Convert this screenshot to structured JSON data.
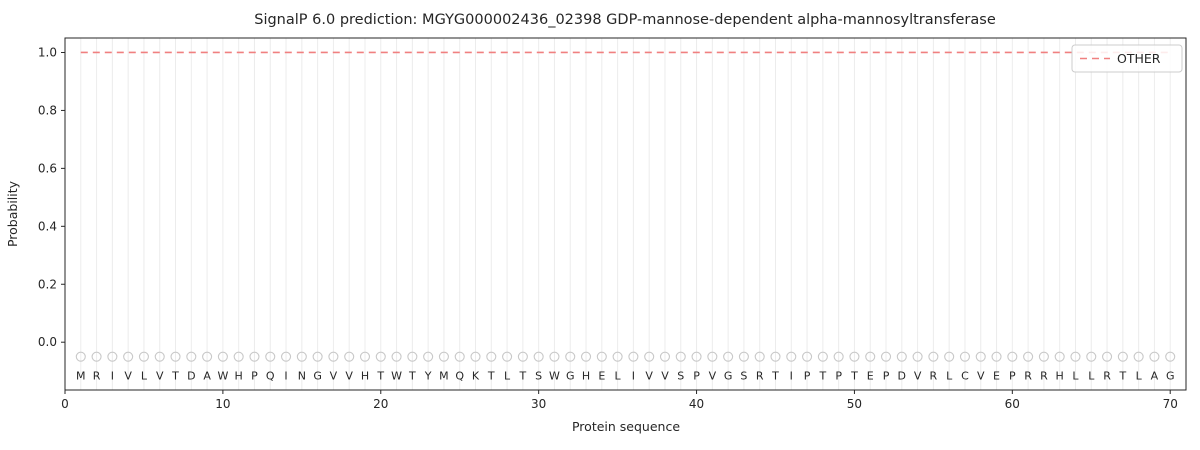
{
  "colors": {
    "other_line": "#f08080",
    "marker": "#c9c9c9",
    "grid": "#ececec",
    "axis": "#262626",
    "text": "#262626",
    "legend_border": "#cccccc",
    "legend_bg": "#ffffff"
  },
  "chart_data": {
    "type": "line",
    "title": "SignalP 6.0 prediction: MGYG000002436_02398 GDP-mannose-dependent alpha-mannosyltransferase",
    "xlabel": "Protein sequence",
    "ylabel": "Probability",
    "xlim": [
      0,
      71
    ],
    "ylim": [
      -0.165,
      1.05
    ],
    "xticks": [
      0,
      10,
      20,
      30,
      40,
      50,
      60,
      70
    ],
    "yticks": [
      0,
      0.2,
      0.4,
      0.6,
      0.8,
      1.0
    ],
    "grid": "vertical line at each residue position",
    "legend_position": "upper right",
    "legend": [
      {
        "label": "OTHER",
        "style": "dashed",
        "color": "#f08080"
      }
    ],
    "sequence": "MRIVLVTDAWHPQINGVVHTWTYMQKTLTSWGHELIVVSPVGSRTIPTPTEPDVRLCVEPRRHLLRTLAG",
    "x": [
      1,
      2,
      3,
      4,
      5,
      6,
      7,
      8,
      9,
      10,
      11,
      12,
      13,
      14,
      15,
      16,
      17,
      18,
      19,
      20,
      21,
      22,
      23,
      24,
      25,
      26,
      27,
      28,
      29,
      30,
      31,
      32,
      33,
      34,
      35,
      36,
      37,
      38,
      39,
      40,
      41,
      42,
      43,
      44,
      45,
      46,
      47,
      48,
      49,
      50,
      51,
      52,
      53,
      54,
      55,
      56,
      57,
      58,
      59,
      60,
      61,
      62,
      63,
      64,
      65,
      66,
      67,
      68,
      69,
      70
    ],
    "series": [
      {
        "name": "OTHER",
        "color": "#f08080",
        "dashed": true,
        "values": [
          1,
          1,
          1,
          1,
          1,
          1,
          1,
          1,
          1,
          1,
          1,
          1,
          1,
          1,
          1,
          1,
          1,
          1,
          1,
          1,
          1,
          1,
          1,
          1,
          1,
          1,
          1,
          1,
          1,
          1,
          1,
          1,
          1,
          1,
          1,
          1,
          1,
          1,
          1,
          1,
          1,
          1,
          1,
          1,
          1,
          1,
          1,
          1,
          1,
          1,
          1,
          1,
          1,
          1,
          1,
          1,
          1,
          1,
          1,
          1,
          1,
          1,
          1,
          1,
          1,
          1,
          1,
          1,
          1,
          1
        ]
      }
    ],
    "marker_y": -0.05,
    "letter_y": -0.125
  }
}
